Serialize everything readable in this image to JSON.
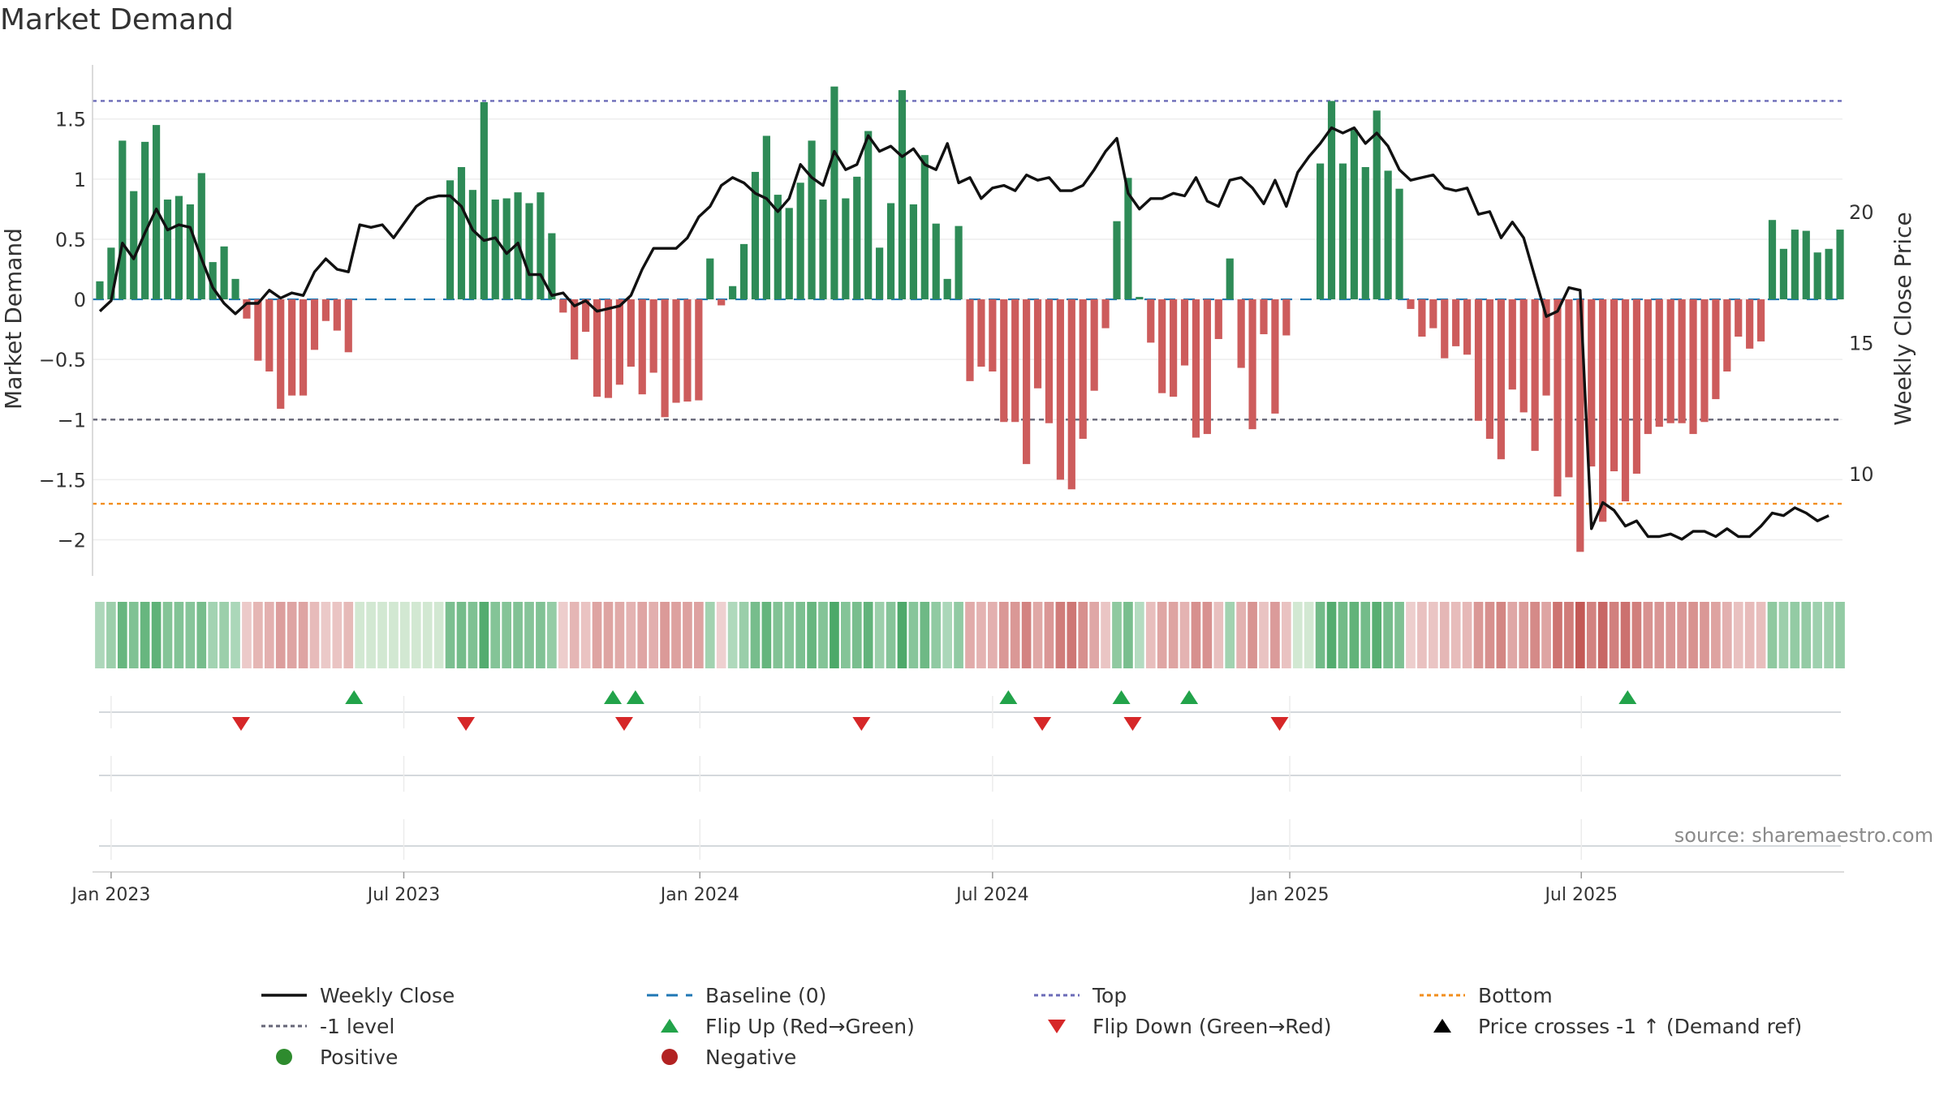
{
  "page": {
    "title": "Market Demand",
    "source": "source: sharemaestro.com"
  },
  "colors": {
    "positive": "#2e8b57",
    "negative": "#cd5c5c",
    "top": "#6b6bb8",
    "bottom": "#f28e1c",
    "minus1": "#666677",
    "baseline": "#1f77b4",
    "price": "#111111",
    "flip_up": "#22a34a",
    "flip_down": "#d62728",
    "dot_positive": "#2e8b2e",
    "dot_negative": "#b22222"
  },
  "chart_data": {
    "type": "bar",
    "title": "Market Demand",
    "ylabel": "Market Demand",
    "y2label": "Weekly Close Price",
    "ylim": [
      -2.3,
      1.95
    ],
    "y2lim": [
      6.1,
      25.6
    ],
    "yticks": [
      1.5,
      1,
      0.5,
      0,
      -0.5,
      -1,
      -1.5,
      -2
    ],
    "ytick_labels": [
      "1.5",
      "1",
      "0.5",
      "0",
      "−0.5",
      "−1",
      "−1.5",
      "−2"
    ],
    "y2ticks": [
      20,
      15,
      10
    ],
    "y2tick_labels": [
      "20",
      "15",
      "10"
    ],
    "x_start_week": -1,
    "x_ticks": [
      {
        "label": "Jan 2023",
        "week": 0
      },
      {
        "label": "Jul 2023",
        "week": 25.9
      },
      {
        "label": "Jan 2024",
        "week": 52.1
      },
      {
        "label": "Jul 2024",
        "week": 78.0
      },
      {
        "label": "Jan 2025",
        "week": 104.3
      },
      {
        "label": "Jul 2025",
        "week": 130.1
      }
    ],
    "reference_lines": {
      "top": 1.65,
      "bottom": -1.7,
      "minus_one": -1,
      "baseline": 0
    },
    "demand": [
      0.15,
      0.43,
      1.32,
      0.9,
      1.31,
      1.45,
      0.83,
      0.86,
      0.79,
      1.05,
      0.31,
      0.44,
      0.17,
      -0.16,
      -0.51,
      -0.6,
      -0.91,
      -0.8,
      -0.8,
      -0.42,
      -0.18,
      -0.26,
      -0.44,
      0,
      0,
      0,
      0,
      0,
      0,
      0,
      0,
      0.99,
      1.1,
      0.91,
      1.64,
      0.83,
      0.84,
      0.89,
      0.8,
      0.89,
      0.55,
      -0.11,
      -0.5,
      -0.27,
      -0.81,
      -0.82,
      -0.71,
      -0.56,
      -0.79,
      -0.61,
      -0.98,
      -0.86,
      -0.85,
      -0.84,
      0.34,
      -0.05,
      0.11,
      0.46,
      1.06,
      1.36,
      0.87,
      0.76,
      0.97,
      1.32,
      0.83,
      1.77,
      0.84,
      1.02,
      1.4,
      0.43,
      0.8,
      1.74,
      0.79,
      1.2,
      0.63,
      0.17,
      0.61,
      -0.68,
      -0.56,
      -0.6,
      -1.02,
      -1.02,
      -1.37,
      -0.74,
      -1.03,
      -1.5,
      -1.58,
      -1.16,
      -0.76,
      -0.24,
      0.65,
      1.01,
      0.02,
      -0.36,
      -0.78,
      -0.81,
      -0.55,
      -1.15,
      -1.12,
      -0.33,
      0.34,
      -0.57,
      -1.08,
      -0.29,
      -0.95,
      -0.3,
      0,
      0,
      1.13,
      1.65,
      1.13,
      1.41,
      1.1,
      1.57,
      1.07,
      0.92,
      -0.08,
      -0.31,
      -0.24,
      -0.49,
      -0.39,
      -0.46,
      -1.01,
      -1.16,
      -1.33,
      -0.75,
      -0.94,
      -1.26,
      -0.8,
      -1.64,
      -1.48,
      -2.1,
      -1.39,
      -1.85,
      -1.43,
      -1.68,
      -1.45,
      -1.12,
      -1.06,
      -1.03,
      -1.03,
      -1.12,
      -1.02,
      -0.83,
      -0.6,
      -0.31,
      -0.41,
      -0.35,
      0.66,
      0.42,
      0.58,
      0.57,
      0.39,
      0.42,
      0.58
    ],
    "weekly_close": [
      16.2,
      16.6,
      18.8,
      18.2,
      19.2,
      20.1,
      19.3,
      19.5,
      19.4,
      18.2,
      17.1,
      16.5,
      16.1,
      16.5,
      16.5,
      17.0,
      16.7,
      16.9,
      16.8,
      17.7,
      18.2,
      17.8,
      17.7,
      19.5,
      19.4,
      19.5,
      19.0,
      19.6,
      20.2,
      20.5,
      20.6,
      20.6,
      20.2,
      19.3,
      18.9,
      19.0,
      18.4,
      18.8,
      17.6,
      17.6,
      16.8,
      16.9,
      16.4,
      16.6,
      16.2,
      16.3,
      16.4,
      16.8,
      17.8,
      18.6,
      18.6,
      18.6,
      19.0,
      19.8,
      20.2,
      21.0,
      21.3,
      21.1,
      20.7,
      20.5,
      20.0,
      20.5,
      21.8,
      21.3,
      21.0,
      22.3,
      21.6,
      21.8,
      22.9,
      22.3,
      22.5,
      22.1,
      22.4,
      21.8,
      21.6,
      22.6,
      21.1,
      21.3,
      20.5,
      20.9,
      21.0,
      20.8,
      21.4,
      21.2,
      21.3,
      20.8,
      20.8,
      21.0,
      21.6,
      22.3,
      22.8,
      20.7,
      20.1,
      20.5,
      20.5,
      20.7,
      20.6,
      21.3,
      20.4,
      20.2,
      21.2,
      21.3,
      20.9,
      20.3,
      21.2,
      20.2,
      21.5,
      22.1,
      22.6,
      23.2,
      23.0,
      23.2,
      22.6,
      23.0,
      22.5,
      21.6,
      21.2,
      21.3,
      21.4,
      20.9,
      20.8,
      20.9,
      19.9,
      20.0,
      19.0,
      19.6,
      19.0,
      17.5,
      16.0,
      16.2,
      17.1,
      17.0,
      7.9,
      8.9,
      8.6,
      8.0,
      8.2,
      7.6,
      7.6,
      7.7,
      7.5,
      7.8,
      7.8,
      7.6,
      7.9,
      7.6,
      7.6,
      8.0,
      8.5,
      8.4,
      8.7,
      8.5,
      8.2,
      8.4
    ],
    "flip_up_weeks": [
      21.5,
      44.4,
      46.4,
      79.4,
      89.4,
      95.4,
      134.2
    ],
    "flip_down_weeks": [
      11.5,
      31.4,
      45.4,
      66.4,
      82.4,
      90.4,
      103.4
    ],
    "legend": [
      {
        "key": "weekly_close",
        "label": "Weekly Close"
      },
      {
        "key": "baseline",
        "label": "Baseline (0)"
      },
      {
        "key": "top",
        "label": "Top"
      },
      {
        "key": "bottom",
        "label": "Bottom"
      },
      {
        "key": "minus_one",
        "label": "-1 level"
      },
      {
        "key": "flip_up",
        "label": "Flip Up (Red→Green)"
      },
      {
        "key": "flip_down",
        "label": "Flip Down (Green→Red)"
      },
      {
        "key": "price_cross",
        "label": "Price crosses -1 ↑ (Demand ref)"
      },
      {
        "key": "positive",
        "label": "Positive"
      },
      {
        "key": "negative",
        "label": "Negative"
      }
    ]
  }
}
